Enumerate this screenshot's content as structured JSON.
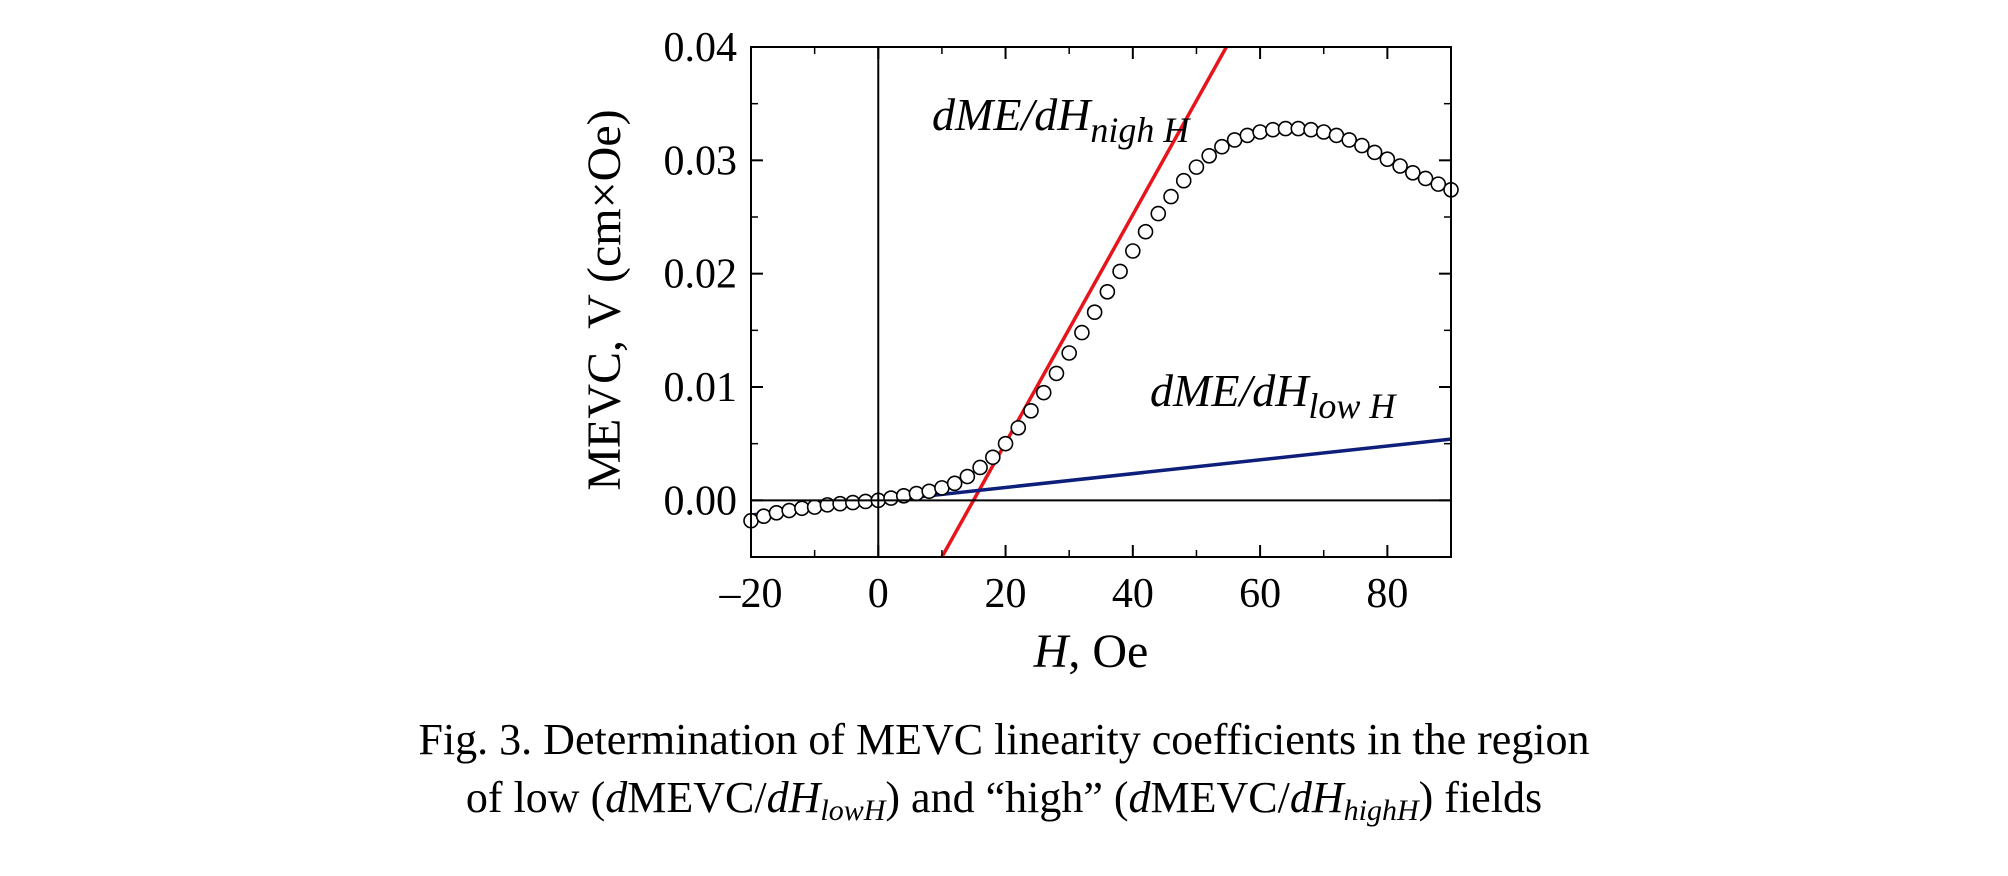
{
  "chart_data": {
    "type": "scatter",
    "xlabel_italic": "H",
    "xlabel_rest": ", Oe",
    "ylabel": "MEVC, V (cm×Oe)",
    "xlim": [
      -20,
      90
    ],
    "ylim": [
      -0.005,
      0.04
    ],
    "xticks": [
      -20,
      0,
      20,
      40,
      60,
      80
    ],
    "xtick_labels": [
      "–20",
      "0",
      "20",
      "40",
      "60",
      "80"
    ],
    "yticks": [
      0.0,
      0.01,
      0.02,
      0.03,
      0.04
    ],
    "ytick_labels": [
      "0.00",
      "0.01",
      "0.02",
      "0.03",
      "0.04"
    ],
    "grid": false,
    "zero_lines": true,
    "colors": {
      "high_fit": "#e8141c",
      "low_fit": "#0d1f7a",
      "markers": "#000000"
    },
    "series": [
      {
        "marker": "open-circle",
        "x": [
          -20,
          -18,
          -16,
          -14,
          -12,
          -10,
          -8,
          -6,
          -4,
          -2,
          0,
          2,
          4,
          6,
          8,
          10,
          12,
          14,
          16,
          18,
          20,
          22,
          24,
          26,
          28,
          30,
          32,
          34,
          36,
          38,
          40,
          42,
          44,
          46,
          48,
          50,
          52,
          54,
          56,
          58,
          60,
          62,
          64,
          66,
          68,
          70,
          72,
          74,
          76,
          78,
          80,
          82,
          84,
          86,
          88,
          90
        ],
        "y": [
          -0.0018,
          -0.0014,
          -0.0011,
          -0.0009,
          -0.0007,
          -0.0006,
          -0.0004,
          -0.0003,
          -0.0002,
          -0.0001,
          0.0,
          0.0002,
          0.0004,
          0.0006,
          0.0008,
          0.0011,
          0.0015,
          0.0021,
          0.0029,
          0.0038,
          0.005,
          0.0064,
          0.0079,
          0.0095,
          0.0112,
          0.013,
          0.0148,
          0.0166,
          0.0184,
          0.0202,
          0.022,
          0.0237,
          0.0253,
          0.0268,
          0.0282,
          0.0294,
          0.0304,
          0.0312,
          0.0318,
          0.0322,
          0.0325,
          0.0327,
          0.0328,
          0.0328,
          0.0327,
          0.0325,
          0.0322,
          0.0318,
          0.0313,
          0.0307,
          0.0301,
          0.0295,
          0.0289,
          0.0284,
          0.0279,
          0.0274
        ]
      },
      {
        "type": "line",
        "points": [
          [
            10,
            -0.005
          ],
          [
            54.7,
            0.04
          ]
        ]
      },
      {
        "type": "line",
        "points": [
          [
            -20,
            -0.0013
          ],
          [
            90,
            0.0054
          ]
        ]
      }
    ],
    "annotations": [
      {
        "main": "dME/dH",
        "sub": "nigh H"
      },
      {
        "main": "dME/dH",
        "sub": "low H"
      }
    ]
  },
  "caption": {
    "line1": "Fig. 3. Determination of MEVC linearity coefficients in the region",
    "l2_a": "of low (",
    "l2_b": "d",
    "l2_c": "MEVC/",
    "l2_d": "dH",
    "l2_e": "lowH",
    "l2_f": ") and “high” (",
    "l2_g": "d",
    "l2_h": "MEVC/",
    "l2_i": "dH",
    "l2_j": "highH",
    "l2_k": ") fields"
  }
}
